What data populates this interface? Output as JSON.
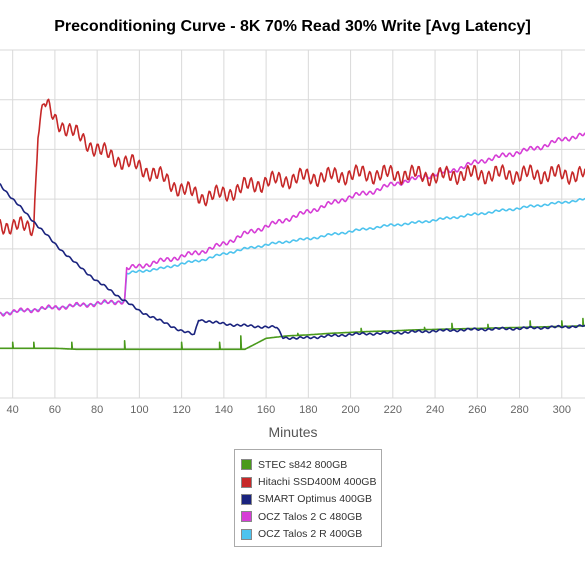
{
  "chart_data": {
    "type": "line",
    "title": "Preconditioning Curve - 8K 70% Read 30% Write [Avg Latency]",
    "xlabel": "Minutes",
    "ylabel": "",
    "x_ticks": [
      40,
      60,
      80,
      100,
      120,
      140,
      160,
      180,
      200,
      220,
      240,
      260,
      280,
      300
    ],
    "xlim": [
      34,
      311
    ],
    "ylim": [
      0,
      7
    ],
    "grid": true,
    "legend_position": "bottom-center",
    "series": [
      {
        "name": "STEC s842 800GB",
        "color": "#4a9a1c",
        "x": [
          34,
          40,
          50,
          60,
          70,
          80,
          90,
          100,
          110,
          120,
          130,
          140,
          150,
          160,
          170,
          180,
          190,
          200,
          210,
          220,
          230,
          240,
          250,
          260,
          270,
          280,
          290,
          300,
          311
        ],
        "values": [
          1.0,
          1.0,
          1.0,
          1.0,
          0.98,
          0.98,
          0.98,
          0.98,
          0.98,
          0.98,
          0.98,
          0.98,
          0.98,
          1.2,
          1.25,
          1.27,
          1.3,
          1.32,
          1.34,
          1.35,
          1.37,
          1.38,
          1.39,
          1.4,
          1.41,
          1.42,
          1.43,
          1.44,
          1.45
        ],
        "spikes": [
          [
            40,
            1.12
          ],
          [
            50,
            1.12
          ],
          [
            68,
            1.12
          ],
          [
            93,
            1.15
          ],
          [
            120,
            1.12
          ],
          [
            138,
            1.12
          ],
          [
            148,
            1.25
          ],
          [
            175,
            1.3
          ],
          [
            205,
            1.4
          ],
          [
            235,
            1.42
          ],
          [
            248,
            1.5
          ],
          [
            265,
            1.48
          ],
          [
            285,
            1.55
          ],
          [
            300,
            1.55
          ],
          [
            310,
            1.6
          ]
        ]
      },
      {
        "name": "Hitachi SSD400M 400GB",
        "color": "#c62828",
        "x": [
          34,
          40,
          45,
          50,
          52,
          55,
          60,
          70,
          80,
          90,
          100,
          110,
          120,
          130,
          140,
          150,
          160,
          170,
          180,
          190,
          200,
          210,
          220,
          230,
          240,
          250,
          260,
          270,
          280,
          290,
          300,
          311
        ],
        "values": [
          3.5,
          3.45,
          3.45,
          3.45,
          5.4,
          5.95,
          5.6,
          5.3,
          5.0,
          4.8,
          4.65,
          4.45,
          4.2,
          4.05,
          4.1,
          4.25,
          4.35,
          4.4,
          4.45,
          4.45,
          4.5,
          4.5,
          4.5,
          4.5,
          4.45,
          4.5,
          4.5,
          4.5,
          4.5,
          4.5,
          4.5,
          4.5
        ],
        "oscillation_amplitude": 0.2
      },
      {
        "name": "SMART Optimus 400GB",
        "color": "#1a237e",
        "x": [
          34,
          40,
          50,
          60,
          70,
          80,
          90,
          100,
          110,
          120,
          126,
          128,
          135,
          145,
          155,
          165,
          168,
          175,
          185,
          200,
          220,
          240,
          260,
          280,
          300,
          311
        ],
        "values": [
          4.3,
          4.0,
          3.55,
          3.1,
          2.7,
          2.35,
          2.05,
          1.75,
          1.55,
          1.35,
          1.27,
          1.58,
          1.52,
          1.47,
          1.44,
          1.42,
          1.22,
          1.2,
          1.23,
          1.28,
          1.31,
          1.35,
          1.38,
          1.4,
          1.43,
          1.45
        ],
        "oscillation_amplitude": 0.03
      },
      {
        "name": "OCZ Talos 2 C 480GB",
        "color": "#d63dd6",
        "x": [
          34,
          50,
          60,
          70,
          80,
          93,
          94,
          100,
          110,
          120,
          130,
          140,
          150,
          160,
          170,
          180,
          190,
          200,
          210,
          220,
          230,
          240,
          250,
          260,
          270,
          280,
          290,
          300,
          311
        ],
        "values": [
          1.7,
          1.78,
          1.82,
          1.86,
          1.9,
          1.95,
          2.6,
          2.65,
          2.75,
          2.85,
          2.95,
          3.1,
          3.3,
          3.45,
          3.6,
          3.75,
          3.9,
          4.05,
          4.15,
          4.3,
          4.4,
          4.5,
          4.6,
          4.75,
          4.85,
          4.95,
          5.05,
          5.2,
          5.3
        ],
        "oscillation_amplitude": 0.06
      },
      {
        "name": "OCZ Talos 2 R 400GB",
        "color": "#4dc3ee",
        "x": [
          34,
          50,
          60,
          70,
          80,
          93,
          94,
          100,
          110,
          120,
          130,
          140,
          150,
          160,
          170,
          180,
          190,
          200,
          210,
          220,
          230,
          240,
          250,
          260,
          270,
          280,
          290,
          300,
          311
        ],
        "values": [
          1.7,
          1.78,
          1.82,
          1.86,
          1.9,
          1.95,
          2.5,
          2.55,
          2.6,
          2.7,
          2.78,
          2.9,
          3.0,
          3.08,
          3.15,
          3.2,
          3.28,
          3.35,
          3.42,
          3.48,
          3.52,
          3.58,
          3.64,
          3.7,
          3.76,
          3.82,
          3.88,
          3.93,
          4.0
        ],
        "oscillation_amplitude": 0.03
      }
    ]
  },
  "colors": {
    "grid": "#d9d9d9",
    "axis_text": "#666666",
    "legend_border": "#aaaaaa"
  }
}
